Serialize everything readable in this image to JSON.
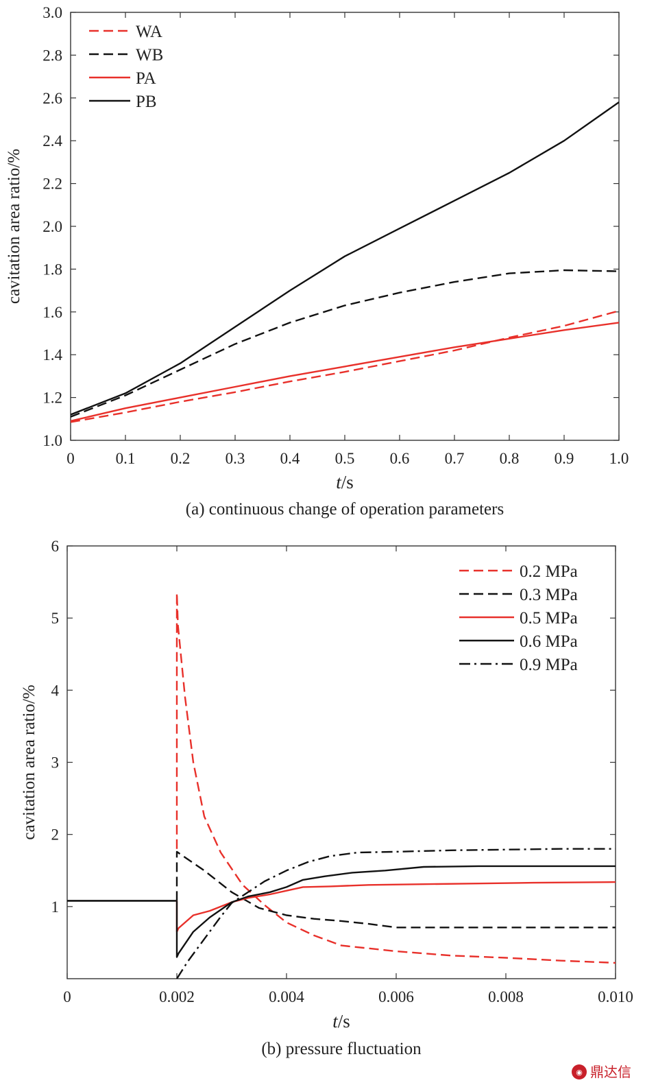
{
  "chart_data": [
    {
      "type": "line",
      "caption": "(a) continuous change of operation parameters",
      "xlabel_italic": "t",
      "xlabel_unit": "/s",
      "ylabel": "cavitation area ratio/%",
      "xlim": [
        0,
        1.0
      ],
      "ylim": [
        1.0,
        3.0
      ],
      "xticks": [
        0,
        0.1,
        0.2,
        0.3,
        0.4,
        0.5,
        0.6,
        0.7,
        0.8,
        0.9,
        1.0
      ],
      "xtick_labels": [
        "0",
        "0.1",
        "0.2",
        "0.3",
        "0.4",
        "0.5",
        "0.6",
        "0.7",
        "0.8",
        "0.9",
        "1.0"
      ],
      "yticks": [
        1.0,
        1.2,
        1.4,
        1.6,
        1.8,
        2.0,
        2.2,
        2.4,
        2.6,
        2.8,
        3.0
      ],
      "ytick_labels": [
        "1.0",
        "1.2",
        "1.4",
        "1.6",
        "1.8",
        "2.0",
        "2.2",
        "2.4",
        "2.6",
        "2.8",
        "3.0"
      ],
      "legend_position": "top-left",
      "series": [
        {
          "name": "WA",
          "color": "#e8302a",
          "dash": "dashed",
          "x": [
            0,
            0.1,
            0.2,
            0.3,
            0.4,
            0.5,
            0.6,
            0.7,
            0.8,
            0.9,
            1.0
          ],
          "y": [
            1.085,
            1.13,
            1.18,
            1.225,
            1.275,
            1.32,
            1.37,
            1.42,
            1.48,
            1.535,
            1.605
          ]
        },
        {
          "name": "WB",
          "color": "#111111",
          "dash": "dashed",
          "x": [
            0,
            0.1,
            0.2,
            0.3,
            0.4,
            0.5,
            0.6,
            0.7,
            0.8,
            0.9,
            1.0
          ],
          "y": [
            1.11,
            1.21,
            1.33,
            1.45,
            1.55,
            1.63,
            1.69,
            1.74,
            1.78,
            1.795,
            1.79
          ]
        },
        {
          "name": "PA",
          "color": "#e8302a",
          "dash": "solid",
          "x": [
            0,
            0.1,
            0.2,
            0.3,
            0.4,
            0.5,
            0.6,
            0.7,
            0.8,
            0.9,
            1.0
          ],
          "y": [
            1.09,
            1.15,
            1.2,
            1.25,
            1.3,
            1.345,
            1.39,
            1.435,
            1.475,
            1.515,
            1.55
          ]
        },
        {
          "name": "PB",
          "color": "#111111",
          "dash": "solid",
          "x": [
            0,
            0.1,
            0.2,
            0.3,
            0.4,
            0.5,
            0.6,
            0.7,
            0.8,
            0.9,
            1.0
          ],
          "y": [
            1.12,
            1.22,
            1.36,
            1.53,
            1.7,
            1.86,
            1.99,
            2.12,
            2.25,
            2.4,
            2.58
          ]
        }
      ]
    },
    {
      "type": "line",
      "caption": "(b) pressure fluctuation",
      "xlabel_italic": "t",
      "xlabel_unit": "/s",
      "ylabel": "cavitation area ratio/%",
      "xlim": [
        0,
        0.01
      ],
      "ylim": [
        0,
        6
      ],
      "xticks": [
        0,
        0.002,
        0.004,
        0.006,
        0.008,
        0.01
      ],
      "xtick_labels": [
        "0",
        "0.002",
        "0.004",
        "0.006",
        "0.008",
        "0.010"
      ],
      "yticks": [
        1,
        2,
        3,
        4,
        5,
        6
      ],
      "ytick_labels": [
        "1",
        "2",
        "3",
        "4",
        "5",
        "6"
      ],
      "legend_position": "top-right",
      "shared_initial": {
        "x": [
          0,
          0.002
        ],
        "y": [
          1.08,
          1.08
        ]
      },
      "series": [
        {
          "name": "0.2 MPa",
          "color": "#e8302a",
          "dash": "dashed",
          "x": [
            0.002,
            0.002,
            0.00202,
            0.00215,
            0.0023,
            0.0025,
            0.0028,
            0.0032,
            0.0036,
            0.004,
            0.0045,
            0.005,
            0.006,
            0.007,
            0.008,
            0.009,
            0.01
          ],
          "y": [
            1.8,
            5.35,
            4.9,
            3.9,
            3.0,
            2.25,
            1.75,
            1.3,
            1.02,
            0.78,
            0.6,
            0.46,
            0.38,
            0.32,
            0.29,
            0.25,
            0.22
          ]
        },
        {
          "name": "0.3 MPa",
          "color": "#111111",
          "dash": "dashed",
          "x": [
            0.002,
            0.002,
            0.0025,
            0.003,
            0.0035,
            0.004,
            0.0045,
            0.005,
            0.0055,
            0.006,
            0.007,
            0.008,
            0.009,
            0.01
          ],
          "y": [
            1.08,
            1.76,
            1.5,
            1.2,
            0.98,
            0.88,
            0.83,
            0.8,
            0.76,
            0.71,
            0.71,
            0.71,
            0.71,
            0.71
          ]
        },
        {
          "name": "0.5 MPa",
          "color": "#e8302a",
          "dash": "solid",
          "x": [
            0.002,
            0.002,
            0.00203,
            0.0023,
            0.0026,
            0.003,
            0.0033,
            0.0037,
            0.004,
            0.0043,
            0.0048,
            0.0055,
            0.0065,
            0.0075,
            0.0085,
            0.01
          ],
          "y": [
            1.08,
            0.65,
            0.7,
            0.88,
            0.94,
            1.06,
            1.12,
            1.17,
            1.22,
            1.27,
            1.28,
            1.3,
            1.31,
            1.32,
            1.33,
            1.34
          ]
        },
        {
          "name": "0.6 MPa",
          "color": "#111111",
          "dash": "solid",
          "x": [
            0.002,
            0.002,
            0.00203,
            0.0023,
            0.0026,
            0.003,
            0.0033,
            0.0037,
            0.004,
            0.0043,
            0.0047,
            0.0052,
            0.0058,
            0.0065,
            0.0075,
            0.0085,
            0.01
          ],
          "y": [
            1.08,
            0.3,
            0.35,
            0.65,
            0.85,
            1.06,
            1.14,
            1.2,
            1.27,
            1.37,
            1.42,
            1.47,
            1.5,
            1.55,
            1.56,
            1.56,
            1.56
          ]
        },
        {
          "name": "0.9 MPa",
          "color": "#111111",
          "dash": "dashdot",
          "x": [
            0.002,
            0.0022,
            0.0025,
            0.0028,
            0.003,
            0.0033,
            0.0036,
            0.004,
            0.0044,
            0.0048,
            0.0053,
            0.006,
            0.007,
            0.008,
            0.009,
            0.01
          ],
          "y": [
            0.0,
            0.24,
            0.55,
            0.86,
            1.05,
            1.2,
            1.35,
            1.5,
            1.62,
            1.7,
            1.75,
            1.76,
            1.78,
            1.79,
            1.8,
            1.8
          ]
        }
      ]
    }
  ],
  "watermark": {
    "label": "鼎达信",
    "icon": "logo-circle-icon",
    "color": "#c8202a"
  }
}
